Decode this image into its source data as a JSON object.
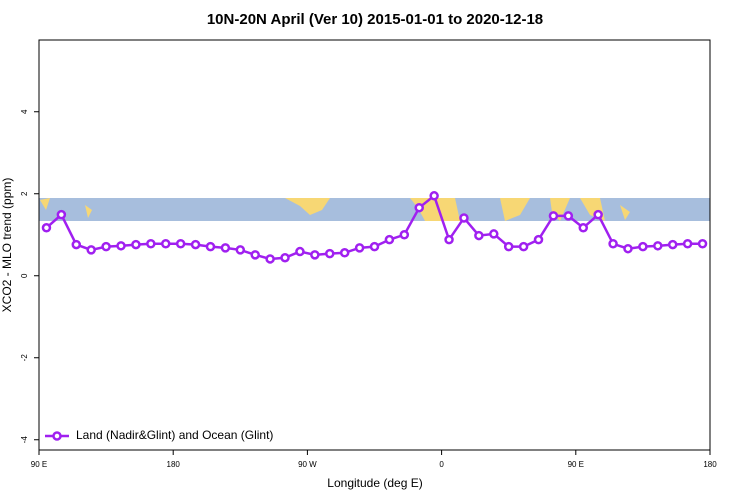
{
  "chart_data": {
    "type": "line",
    "title": "10N-20N April (Ver 10)   2015-01-01 to 2020-12-18",
    "x_label": "Longitude (deg E)",
    "y_label": "XCO2 - MLO trend (ppm)",
    "xlim": [
      90,
      540
    ],
    "ylim": [
      -4.25,
      5.75
    ],
    "xticks": [
      {
        "value": 90,
        "label": "90 E"
      },
      180,
      {
        "value": 270,
        "label": "90 W"
      },
      {
        "value": 360,
        "label": "0"
      },
      {
        "value": 450,
        "label": "90 E"
      },
      {
        "value": 540,
        "label": "180"
      }
    ],
    "yticks": [
      -4,
      -2,
      0,
      2,
      4
    ],
    "legend": "bottom-left",
    "x": [
      95,
      105,
      115,
      125,
      135,
      145,
      155,
      165,
      175,
      185,
      195,
      205,
      215,
      225,
      235,
      245,
      255,
      265,
      275,
      285,
      295,
      305,
      315,
      325,
      335,
      345,
      355,
      365,
      375,
      385,
      395,
      405,
      415,
      425,
      435,
      445,
      455,
      465,
      475,
      485,
      495,
      505,
      515,
      525,
      535
    ],
    "series": [
      {
        "name": "Land (Nadir&Glint) and Ocean (Glint)",
        "color": "#a020f0",
        "values": [
          1.17,
          1.49,
          0.76,
          0.63,
          0.71,
          0.73,
          0.76,
          0.78,
          0.78,
          0.78,
          0.76,
          0.71,
          0.68,
          0.63,
          0.51,
          0.41,
          0.44,
          0.59,
          0.51,
          0.54,
          0.56,
          0.68,
          0.71,
          0.88,
          1.0,
          1.66,
          1.95,
          0.88,
          1.41,
          0.98,
          1.02,
          0.71,
          0.71,
          0.88,
          1.46,
          1.46,
          1.17,
          1.49,
          0.78,
          0.66,
          0.71,
          0.73,
          0.76,
          0.78,
          0.78
        ]
      }
    ]
  }
}
